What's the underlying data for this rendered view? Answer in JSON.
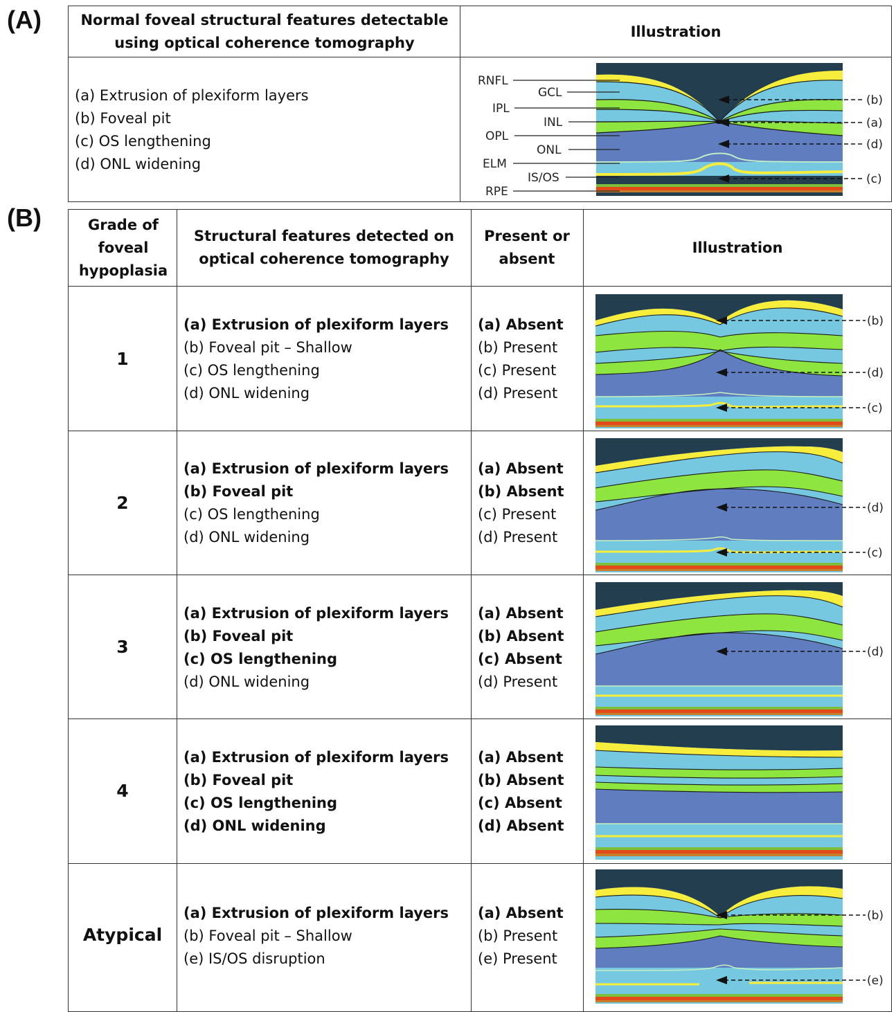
{
  "panels": {
    "a_label": "(A)",
    "b_label": "(B)"
  },
  "panel_a": {
    "header_features": "Normal foveal structural features detectable using optical coherence tomography",
    "header_illustration": "Illustration",
    "features": [
      "(a) Extrusion of plexiform layers",
      "(b) Foveal pit",
      "(c) OS lengthening",
      "(d) ONL widening"
    ],
    "layer_labels": [
      "RNFL",
      "GCL",
      "IPL",
      "INL",
      "OPL",
      "ONL",
      "ELM",
      "IS/OS",
      "RPE"
    ],
    "annotations": [
      "(b)",
      "(a)",
      "(d)",
      "(c)"
    ]
  },
  "panel_b": {
    "headers": {
      "grade": "Grade of foveal hypoplasia",
      "features": "Structural features detected on optical coherence tomography",
      "present": "Present or absent",
      "illustration": "Illustration"
    },
    "rows": [
      {
        "grade": "1",
        "features": [
          {
            "t": "(a) Extrusion of plexiform layers",
            "b": true
          },
          {
            "t": "(b) Foveal pit – Shallow",
            "b": false
          },
          {
            "t": "(c) OS lengthening",
            "b": false
          },
          {
            "t": "(d) ONL widening",
            "b": false
          }
        ],
        "status": [
          {
            "t": "(a) Absent",
            "b": true
          },
          {
            "t": "(b) Present",
            "b": false
          },
          {
            "t": "(c) Present",
            "b": false
          },
          {
            "t": "(d) Present",
            "b": false
          }
        ],
        "annotations": [
          "(b)",
          "(d)",
          "(c)"
        ]
      },
      {
        "grade": "2",
        "features": [
          {
            "t": "(a) Extrusion of plexiform layers",
            "b": true
          },
          {
            "t": "(b) Foveal pit",
            "b": true
          },
          {
            "t": "(c) OS lengthening",
            "b": false
          },
          {
            "t": "(d) ONL widening",
            "b": false
          }
        ],
        "status": [
          {
            "t": "(a) Absent",
            "b": true
          },
          {
            "t": "(b) Absent",
            "b": true
          },
          {
            "t": "(c) Present",
            "b": false
          },
          {
            "t": "(d) Present",
            "b": false
          }
        ],
        "annotations": [
          "(d)",
          "(c)"
        ]
      },
      {
        "grade": "3",
        "features": [
          {
            "t": "(a) Extrusion of plexiform layers",
            "b": true
          },
          {
            "t": "(b) Foveal pit",
            "b": true
          },
          {
            "t": "(c) OS lengthening",
            "b": true
          },
          {
            "t": "(d) ONL widening",
            "b": false
          }
        ],
        "status": [
          {
            "t": "(a) Absent",
            "b": true
          },
          {
            "t": "(b) Absent",
            "b": true
          },
          {
            "t": "(c) Absent",
            "b": true
          },
          {
            "t": "(d) Present",
            "b": false
          }
        ],
        "annotations": [
          "(d)"
        ]
      },
      {
        "grade": "4",
        "features": [
          {
            "t": "(a) Extrusion of plexiform layers",
            "b": true
          },
          {
            "t": "(b) Foveal pit",
            "b": true
          },
          {
            "t": "(c) OS lengthening",
            "b": true
          },
          {
            "t": "(d) ONL widening",
            "b": true
          }
        ],
        "status": [
          {
            "t": "(a) Absent",
            "b": true
          },
          {
            "t": "(b) Absent",
            "b": true
          },
          {
            "t": "(c) Absent",
            "b": true
          },
          {
            "t": "(d) Absent",
            "b": true
          }
        ],
        "annotations": []
      },
      {
        "grade": "Atypical",
        "features": [
          {
            "t": "(a) Extrusion of plexiform layers",
            "b": true
          },
          {
            "t": "(b) Foveal pit – Shallow",
            "b": false
          },
          {
            "t": "(e) IS/OS disruption",
            "b": false
          }
        ],
        "status": [
          {
            "t": "(a) Absent",
            "b": true
          },
          {
            "t": "(b) Present",
            "b": false
          },
          {
            "t": "(e) Present",
            "b": false
          }
        ],
        "annotations": [
          "(b)",
          "(e)"
        ]
      }
    ]
  },
  "colors": {
    "background": "#233f4f",
    "rnfl": "#f6ed3c",
    "gcl": "#76c7e0",
    "ipl": "#8ee53f",
    "onl": "#5f7dbf",
    "isos": "#f6ed3c",
    "rpe": "#e34a1a",
    "green_band": "#7dbf3a"
  }
}
